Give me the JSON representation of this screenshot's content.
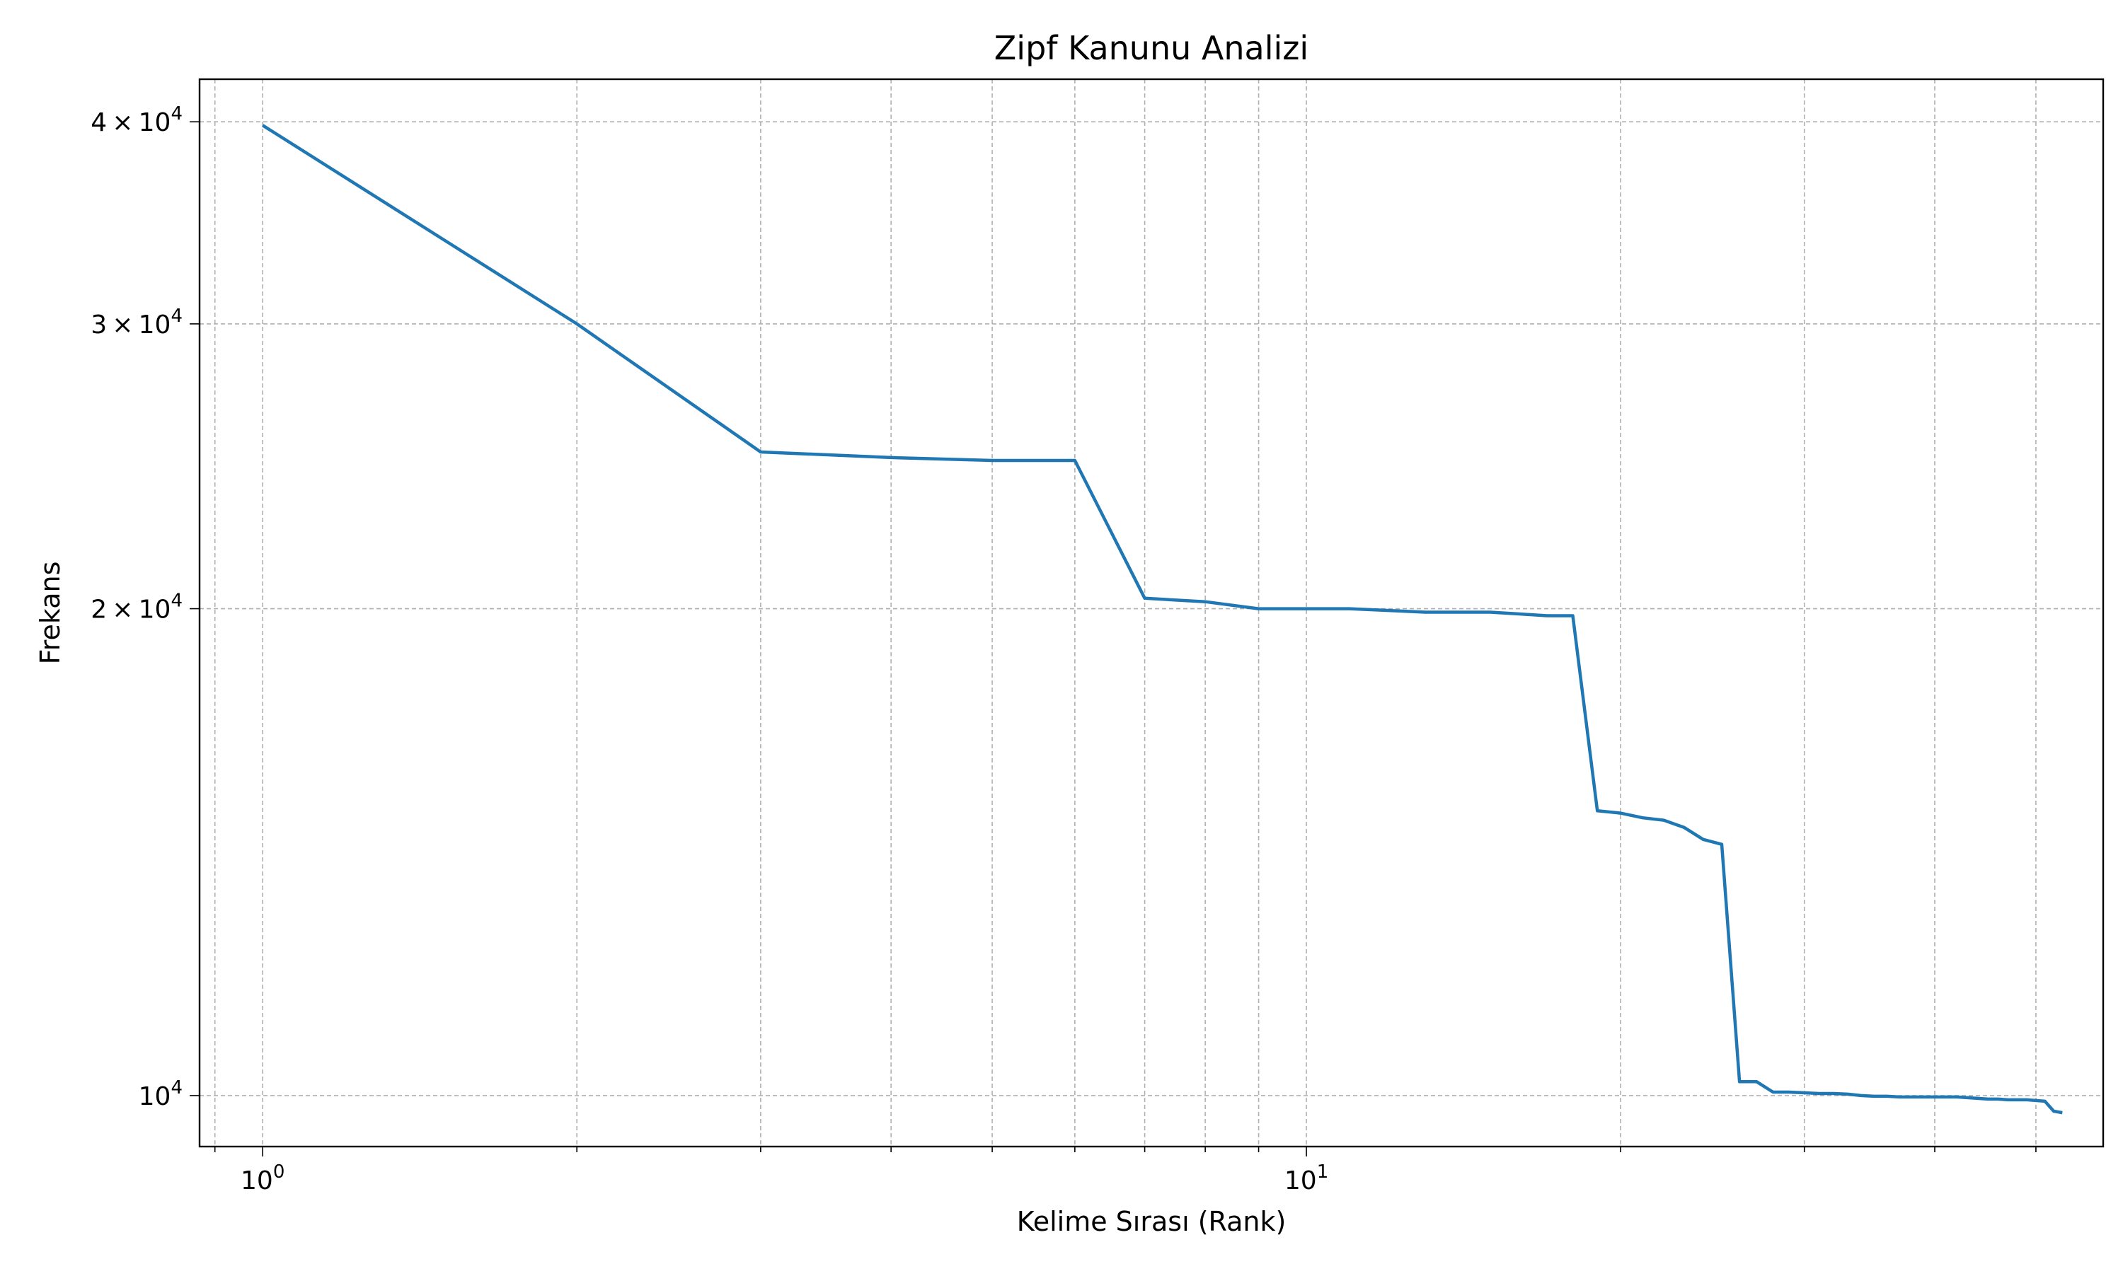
{
  "chart_data": {
    "type": "line",
    "title": "Zipf Kanunu Analizi",
    "xlabel": "Kelime Sırası (Rank)",
    "ylabel": "Frekans",
    "xscale": "log",
    "yscale": "log",
    "xlim": [
      0.87,
      58
    ],
    "ylim": [
      9300,
      42500
    ],
    "grid": true,
    "x_major_ticks": [
      {
        "value": 1,
        "base": "10",
        "exp": "0"
      },
      {
        "value": 10,
        "base": "10",
        "exp": "1"
      }
    ],
    "x_minor_ticks": [
      0.9,
      2,
      3,
      4,
      5,
      6,
      7,
      8,
      9,
      20,
      30,
      40,
      50
    ],
    "y_ticks": [
      {
        "value": 10000,
        "mant": "",
        "base": "10",
        "exp": "4"
      },
      {
        "value": 20000,
        "mant": "2",
        "base": "10",
        "exp": "4"
      },
      {
        "value": 30000,
        "mant": "3",
        "base": "10",
        "exp": "4"
      },
      {
        "value": 40000,
        "mant": "4",
        "base": "10",
        "exp": "4"
      }
    ],
    "series": [
      {
        "color": "#1f77b4",
        "x": [
          1,
          2,
          3,
          4,
          5,
          6,
          7,
          8,
          9,
          10,
          11,
          12,
          13,
          14,
          15,
          16,
          17,
          18,
          19,
          20,
          21,
          22,
          23,
          24,
          25,
          26,
          27,
          28,
          29,
          30,
          31,
          32,
          33,
          34,
          35,
          36,
          37,
          38,
          39,
          40,
          41,
          42,
          43,
          44,
          45,
          46,
          47,
          48,
          49,
          50,
          51,
          52,
          53
        ],
        "y": [
          39800,
          30000,
          25000,
          24800,
          24700,
          24700,
          20300,
          20200,
          20000,
          20000,
          20000,
          19950,
          19900,
          19900,
          19900,
          19850,
          19800,
          19800,
          15000,
          14950,
          14850,
          14800,
          14650,
          14400,
          14300,
          10200,
          10200,
          10050,
          10050,
          10040,
          10030,
          10030,
          10020,
          10000,
          9990,
          9990,
          9980,
          9980,
          9980,
          9980,
          9980,
          9980,
          9970,
          9960,
          9950,
          9950,
          9940,
          9940,
          9940,
          9930,
          9920,
          9780,
          9760
        ]
      }
    ]
  }
}
